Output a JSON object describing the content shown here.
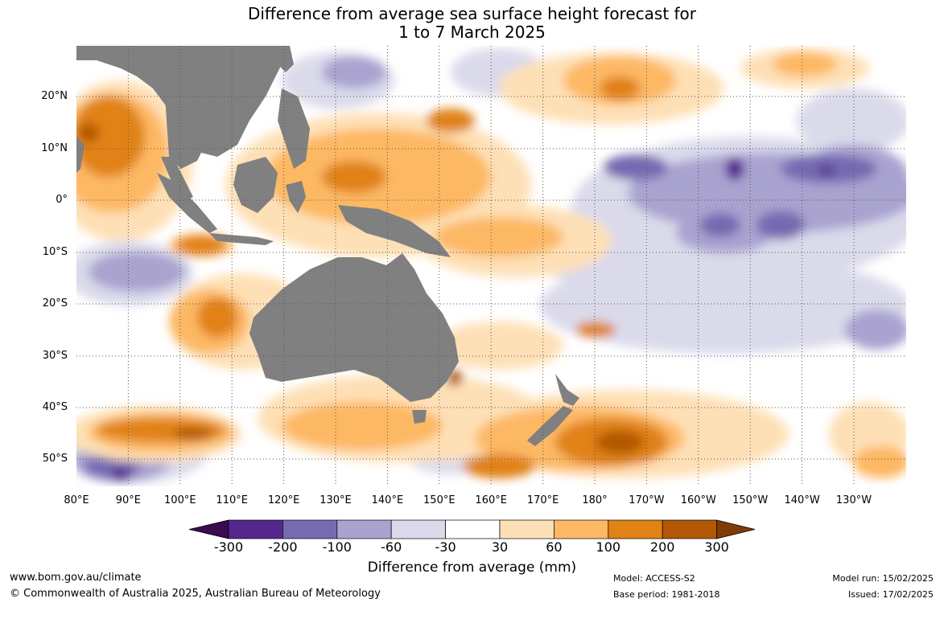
{
  "title": {
    "line1": "Difference from average sea surface height forecast for",
    "line2": "1 to 7 March 2025"
  },
  "axes": {
    "y_labels": [
      "20°N",
      "10°N",
      "0°",
      "10°S",
      "20°S",
      "30°S",
      "40°S",
      "50°S"
    ],
    "x_labels": [
      "80°E",
      "90°E",
      "100°E",
      "110°E",
      "120°E",
      "130°E",
      "140°E",
      "150°E",
      "160°E",
      "170°E",
      "180°",
      "170°W",
      "160°W",
      "150°W",
      "140°W",
      "130°W"
    ]
  },
  "colorbar": {
    "labels": [
      "-300",
      "-200",
      "-100",
      "-60",
      "-30",
      "30",
      "60",
      "100",
      "200",
      "300"
    ],
    "colors": [
      "#3b0a4f",
      "#54278f",
      "#756bb1",
      "#a9a3d0",
      "#dadaeb",
      "#ffffff",
      "#fee0b6",
      "#fdb863",
      "#e08214",
      "#b35806",
      "#7f3b08"
    ],
    "title": "Difference from average (mm)"
  },
  "footer": {
    "website": "www.bom.gov.au/climate",
    "copyright": "© Commonwealth of Australia 2025, Australian Bureau of Meteorology",
    "model": "Model: ACCESS-S2",
    "base_period": "Base period: 1981-2018",
    "model_run": "Model run: 15/02/2025",
    "issued": "Issued: 17/02/2025"
  },
  "map_colors": {
    "land": "#808080",
    "grid": "#555555"
  }
}
